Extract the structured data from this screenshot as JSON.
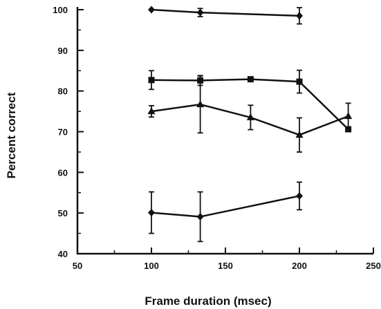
{
  "chart_data": {
    "type": "line",
    "title": "",
    "xlabel": "Frame duration (msec)",
    "ylabel": "Percent correct",
    "xlim": [
      50,
      250
    ],
    "ylim": [
      40,
      100
    ],
    "xticks": [
      50,
      100,
      150,
      200,
      250
    ],
    "yticks": [
      40,
      50,
      60,
      70,
      80,
      90,
      100
    ],
    "grid": false,
    "legend": "none",
    "series": [
      {
        "marker": "diamond",
        "points": [
          {
            "x": 100,
            "y": 100.0,
            "err": 0
          },
          {
            "x": 133,
            "y": 99.3,
            "err": 1.0
          },
          {
            "x": 200,
            "y": 98.5,
            "err": 2.0
          }
        ]
      },
      {
        "marker": "square",
        "points": [
          {
            "x": 100,
            "y": 82.7,
            "err": 2.3
          },
          {
            "x": 133,
            "y": 82.6,
            "err": 1.2
          },
          {
            "x": 167,
            "y": 82.9,
            "err": 0
          },
          {
            "x": 200,
            "y": 82.3,
            "err": 2.8
          },
          {
            "x": 233,
            "y": 70.6,
            "err": 0
          }
        ]
      },
      {
        "marker": "triangle",
        "points": [
          {
            "x": 100,
            "y": 75.0,
            "err": 1.4
          },
          {
            "x": 133,
            "y": 76.7,
            "err": 7.0
          },
          {
            "x": 167,
            "y": 73.5,
            "err": 3.0
          },
          {
            "x": 200,
            "y": 69.2,
            "err": 4.2
          },
          {
            "x": 233,
            "y": 73.8,
            "err": 3.2
          }
        ]
      },
      {
        "marker": "diamond",
        "points": [
          {
            "x": 100,
            "y": 50.1,
            "err": 5.1
          },
          {
            "x": 133,
            "y": 49.1,
            "err": 6.1
          },
          {
            "x": 200,
            "y": 54.2,
            "err": 3.4
          }
        ]
      }
    ]
  }
}
